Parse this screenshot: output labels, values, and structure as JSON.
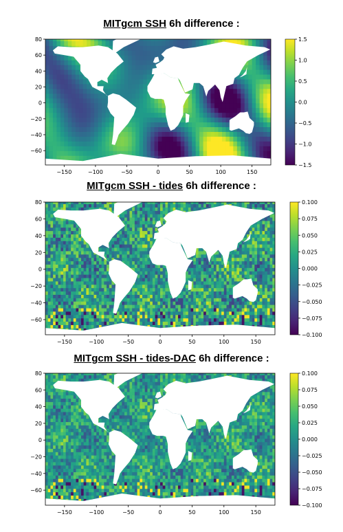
{
  "colors": {
    "ocean": "viridis",
    "land": "#ffffff"
  },
  "chart_data": [
    {
      "type": "heatmap",
      "title_underlined": "MITgcm SSH",
      "title_rest": " 6h difference :",
      "xlim": [
        -180,
        180
      ],
      "ylim": [
        -78,
        80
      ],
      "x_ticks": [
        -150,
        -100,
        -50,
        0,
        50,
        100,
        150
      ],
      "y_ticks": [
        -60,
        -40,
        -20,
        0,
        20,
        40,
        60,
        80
      ],
      "x_tick_labels": [
        "−150",
        "−100",
        "−50",
        "0",
        "50",
        "100",
        "150"
      ],
      "y_tick_labels": [
        "−60",
        "−40",
        "−20",
        "0",
        "20",
        "40",
        "60",
        "80"
      ],
      "colorbar_ticks": [
        -1.5,
        -1.0,
        -0.5,
        0.0,
        0.5,
        1.0,
        1.5
      ],
      "colorbar_labels": [
        "−1.5",
        "−1.0",
        "−0.5",
        "0.0",
        "0.5",
        "1.0",
        "1.5"
      ],
      "colorbar_range": [
        -1.5,
        1.5
      ],
      "colormap": "viridis",
      "field_style": "smooth"
    },
    {
      "type": "heatmap",
      "title_underlined": "MITgcm SSH - tides",
      "title_rest": " 6h difference :",
      "xlim": [
        -180,
        180
      ],
      "ylim": [
        -78,
        80
      ],
      "x_ticks": [
        -150,
        -100,
        -50,
        0,
        50,
        100,
        150
      ],
      "y_ticks": [
        -60,
        -40,
        -20,
        0,
        20,
        40,
        60,
        80
      ],
      "x_tick_labels": [
        "−150",
        "−100",
        "−50",
        "0",
        "50",
        "100",
        "150"
      ],
      "y_tick_labels": [
        "−60",
        "−40",
        "−20",
        "0",
        "20",
        "40",
        "60",
        "80"
      ],
      "colorbar_ticks": [
        -0.1,
        -0.075,
        -0.05,
        -0.025,
        0.0,
        0.025,
        0.05,
        0.075,
        0.1
      ],
      "colorbar_labels": [
        "−0.100",
        "−0.075",
        "−0.050",
        "−0.025",
        "0.000",
        "0.025",
        "0.050",
        "0.075",
        "0.100"
      ],
      "colorbar_range": [
        -0.1,
        0.1
      ],
      "colormap": "viridis",
      "field_style": "noisy"
    },
    {
      "type": "heatmap",
      "title_underlined": "MITgcm SSH - tides-DAC",
      "title_rest": " 6h difference :",
      "xlim": [
        -180,
        180
      ],
      "ylim": [
        -78,
        80
      ],
      "x_ticks": [
        -150,
        -100,
        -50,
        0,
        50,
        100,
        150
      ],
      "y_ticks": [
        -60,
        -40,
        -20,
        0,
        20,
        40,
        60,
        80
      ],
      "x_tick_labels": [
        "−150",
        "−100",
        "−50",
        "0",
        "50",
        "100",
        "150"
      ],
      "y_tick_labels": [
        "−60",
        "−40",
        "−20",
        "0",
        "20",
        "40",
        "60",
        "80"
      ],
      "colorbar_ticks": [
        -0.1,
        -0.075,
        -0.05,
        -0.025,
        0.0,
        0.025,
        0.05,
        0.075,
        0.1
      ],
      "colorbar_labels": [
        "−0.100",
        "−0.075",
        "−0.050",
        "−0.025",
        "0.000",
        "0.025",
        "0.050",
        "0.075",
        "0.100"
      ],
      "colorbar_range": [
        -0.1,
        0.1
      ],
      "colormap": "viridis",
      "field_style": "noisy-calm"
    }
  ]
}
